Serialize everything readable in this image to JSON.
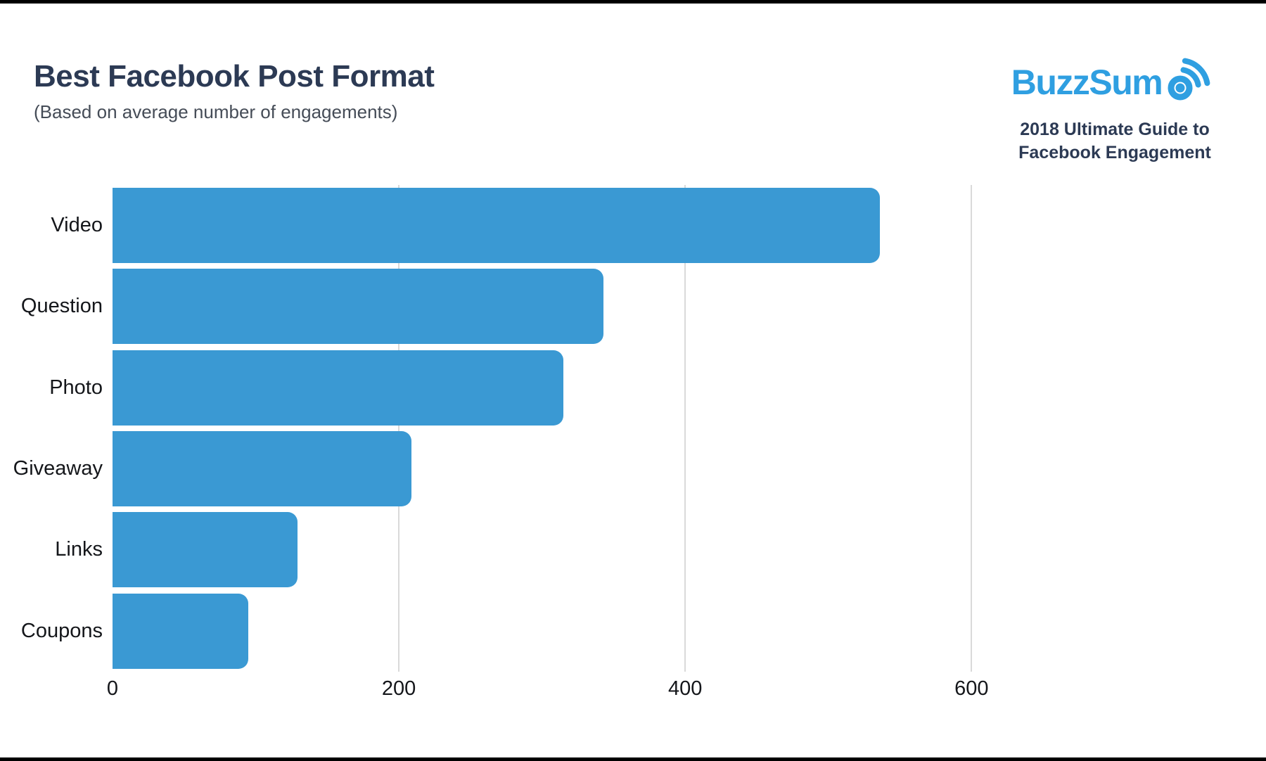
{
  "header": {
    "title": "Best Facebook Post Format",
    "subtitle": "(Based on average number of engagements)"
  },
  "brand": {
    "logo_text": "BuzzSum",
    "logo_icon": "radar-o-icon",
    "logo_color": "#2f9fe1",
    "tagline_line1": "2018 Ultimate Guide to",
    "tagline_line2": "Facebook Engagement",
    "tagline_color": "#2c3a54"
  },
  "chart_data": {
    "type": "bar",
    "orientation": "horizontal",
    "title": "Best Facebook Post Format",
    "subtitle": "(Based on average number of engagements)",
    "categories": [
      "Video",
      "Question",
      "Photo",
      "Giveaway",
      "Links",
      "Coupons"
    ],
    "values": [
      536,
      343,
      315,
      209,
      129,
      95
    ],
    "xlabel": "",
    "ylabel": "",
    "x_ticks": [
      0,
      200,
      400,
      600
    ],
    "x_max": 620,
    "xlim": [
      0,
      620
    ],
    "grid": "vertical-gridlines-only",
    "legend": "none",
    "bar_color": "#3a99d3",
    "gridline_color": "#d9d9d9",
    "label_color": "#14161a"
  }
}
